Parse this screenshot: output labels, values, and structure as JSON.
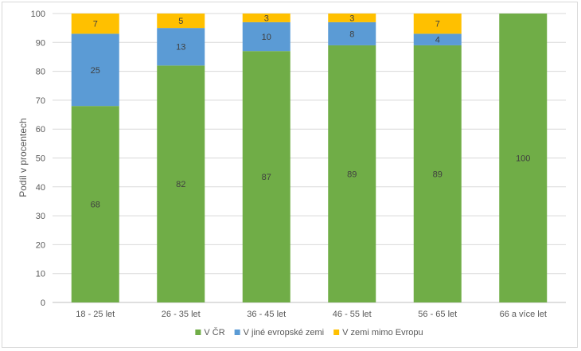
{
  "chart_data": {
    "type": "bar",
    "stacked": true,
    "categories": [
      "18 - 25 let",
      "26 - 35 let",
      "36 - 45 let",
      "46 - 55 let",
      "56 - 65 let",
      "66 a více let"
    ],
    "series": [
      {
        "name": "V ČR",
        "color": "#70ad47",
        "values": [
          68,
          82,
          87,
          89,
          89,
          100
        ]
      },
      {
        "name": "V jiné evropské zemi",
        "color": "#5b9bd5",
        "values": [
          25,
          13,
          10,
          8,
          4,
          0
        ]
      },
      {
        "name": "V zemi mimo Evropu",
        "color": "#ffc000",
        "values": [
          7,
          5,
          3,
          3,
          7,
          0
        ]
      }
    ],
    "ylabel": "Podíl v procentech",
    "xlabel": "",
    "ylim": [
      0,
      100
    ],
    "yticks": [
      0,
      10,
      20,
      30,
      40,
      50,
      60,
      70,
      80,
      90,
      100
    ],
    "grid": true,
    "legend": "bottom"
  }
}
